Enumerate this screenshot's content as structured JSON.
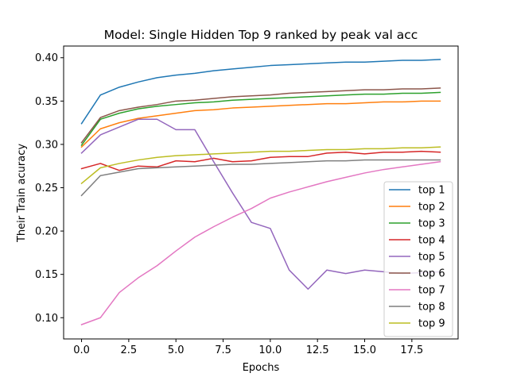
{
  "chart_data": {
    "type": "line",
    "title": "Model: Single Hidden Top 9 ranked by peak val acc",
    "xlabel": "Epochs",
    "ylabel": "Their Train acuracy",
    "xlim": [
      -0.95,
      19.95
    ],
    "ylim": [
      0.0755,
      0.4135
    ],
    "xticks": [
      0.0,
      2.5,
      5.0,
      7.5,
      10.0,
      12.5,
      15.0,
      17.5
    ],
    "xtick_labels": [
      "0.0",
      "2.5",
      "5.0",
      "7.5",
      "10.0",
      "12.5",
      "15.0",
      "17.5"
    ],
    "yticks": [
      0.1,
      0.15,
      0.2,
      0.25,
      0.3,
      0.35,
      0.4
    ],
    "ytick_labels": [
      "0.10",
      "0.15",
      "0.20",
      "0.25",
      "0.30",
      "0.35",
      "0.40"
    ],
    "grid": false,
    "legend_position": "lower-right",
    "x": [
      0,
      1,
      2,
      3,
      4,
      5,
      6,
      7,
      8,
      9,
      10,
      11,
      12,
      13,
      14,
      15,
      16,
      17,
      18,
      19
    ],
    "series": [
      {
        "name": "top 1",
        "color": "#1f77b4",
        "values": [
          0.324,
          0.357,
          0.366,
          0.372,
          0.377,
          0.38,
          0.382,
          0.385,
          0.387,
          0.389,
          0.391,
          0.392,
          0.393,
          0.394,
          0.395,
          0.395,
          0.396,
          0.397,
          0.397,
          0.398
        ]
      },
      {
        "name": "top 2",
        "color": "#ff7f0e",
        "values": [
          0.297,
          0.318,
          0.325,
          0.33,
          0.333,
          0.336,
          0.339,
          0.34,
          0.342,
          0.343,
          0.344,
          0.345,
          0.346,
          0.347,
          0.347,
          0.348,
          0.349,
          0.349,
          0.35,
          0.35
        ]
      },
      {
        "name": "top 3",
        "color": "#2ca02c",
        "values": [
          0.299,
          0.329,
          0.336,
          0.341,
          0.344,
          0.346,
          0.348,
          0.349,
          0.351,
          0.352,
          0.353,
          0.354,
          0.355,
          0.356,
          0.357,
          0.358,
          0.358,
          0.359,
          0.359,
          0.36
        ]
      },
      {
        "name": "top 4",
        "color": "#d62728",
        "values": [
          0.272,
          0.278,
          0.27,
          0.275,
          0.274,
          0.281,
          0.28,
          0.284,
          0.28,
          0.281,
          0.285,
          0.286,
          0.286,
          0.29,
          0.291,
          0.289,
          0.291,
          0.291,
          0.292,
          0.291
        ]
      },
      {
        "name": "top 5",
        "color": "#9467bd",
        "values": [
          0.29,
          0.311,
          0.32,
          0.329,
          0.329,
          0.317,
          0.317,
          0.28,
          0.244,
          0.21,
          0.203,
          0.155,
          0.133,
          0.155,
          0.151,
          0.155,
          0.153,
          0.151,
          0.152,
          0.153
        ]
      },
      {
        "name": "top 6",
        "color": "#8c564b",
        "values": [
          0.302,
          0.331,
          0.339,
          0.343,
          0.346,
          0.35,
          0.351,
          0.353,
          0.355,
          0.356,
          0.357,
          0.359,
          0.36,
          0.361,
          0.362,
          0.363,
          0.363,
          0.364,
          0.364,
          0.365
        ]
      },
      {
        "name": "top 7",
        "color": "#e377c2",
        "values": [
          0.092,
          0.1,
          0.129,
          0.146,
          0.16,
          0.177,
          0.193,
          0.205,
          0.216,
          0.226,
          0.238,
          0.245,
          0.251,
          0.257,
          0.262,
          0.267,
          0.271,
          0.274,
          0.277,
          0.28
        ]
      },
      {
        "name": "top 8",
        "color": "#7f7f7f",
        "values": [
          0.241,
          0.264,
          0.268,
          0.272,
          0.273,
          0.274,
          0.275,
          0.276,
          0.277,
          0.277,
          0.278,
          0.279,
          0.28,
          0.281,
          0.281,
          0.282,
          0.282,
          0.282,
          0.282,
          0.282
        ]
      },
      {
        "name": "top 9",
        "color": "#bcbd22",
        "values": [
          0.255,
          0.273,
          0.278,
          0.282,
          0.285,
          0.287,
          0.288,
          0.289,
          0.29,
          0.291,
          0.292,
          0.292,
          0.293,
          0.294,
          0.294,
          0.295,
          0.295,
          0.296,
          0.296,
          0.297
        ]
      }
    ]
  }
}
